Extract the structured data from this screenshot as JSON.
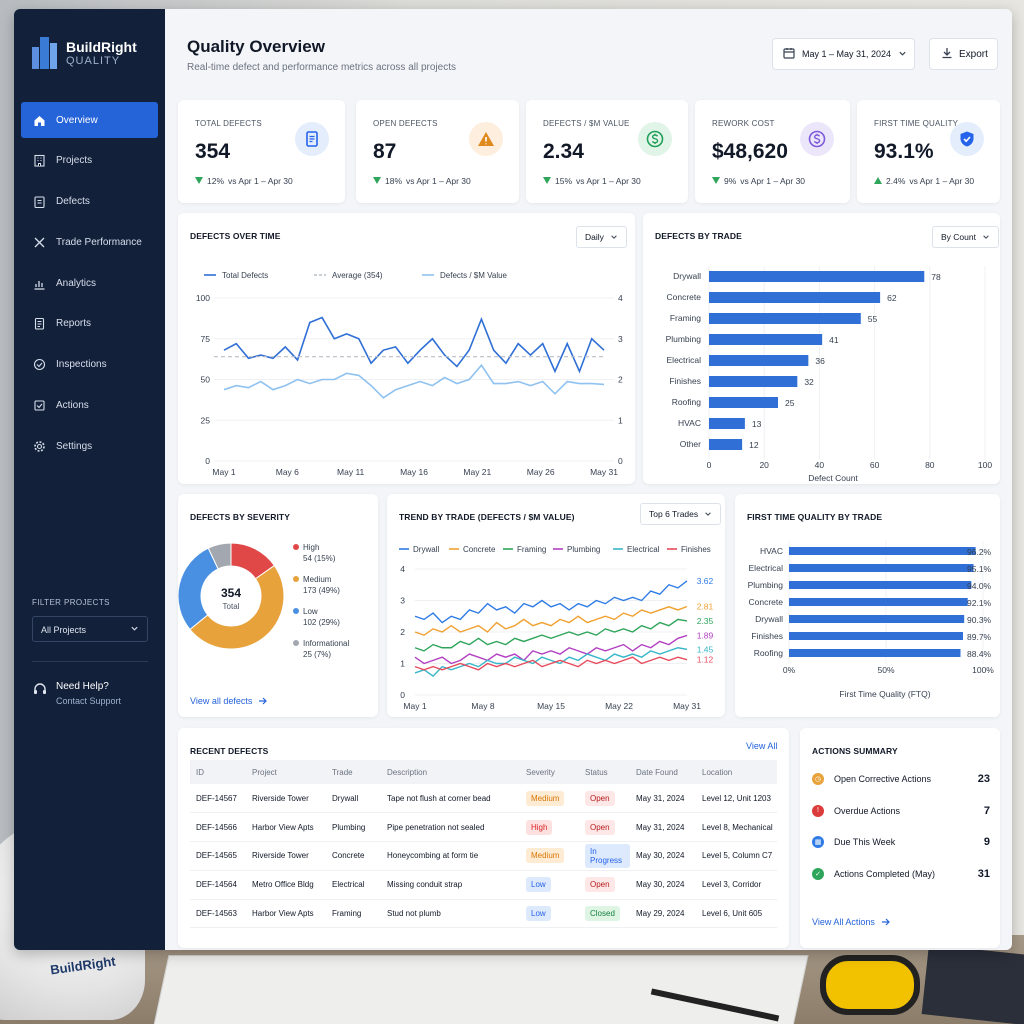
{
  "app": {
    "name": "BuildRight",
    "sub": "QUALITY"
  },
  "sidebar": {
    "items": [
      {
        "label": "Overview",
        "icon": "home-icon",
        "active": true
      },
      {
        "label": "Projects",
        "icon": "building-icon"
      },
      {
        "label": "Defects",
        "icon": "clipboard-icon"
      },
      {
        "label": "Trade Performance",
        "icon": "tools-icon"
      },
      {
        "label": "Analytics",
        "icon": "chart-icon"
      },
      {
        "label": "Reports",
        "icon": "report-icon"
      },
      {
        "label": "Inspections",
        "icon": "check-circle-icon"
      },
      {
        "label": "Actions",
        "icon": "checklist-icon"
      },
      {
        "label": "Settings",
        "icon": "gear-icon"
      }
    ],
    "filter_label": "FILTER PROJECTS",
    "filter_value": "All Projects",
    "help_title": "Need Help?",
    "help_link": "Contact Support"
  },
  "header": {
    "title": "Quality Overview",
    "subtitle": "Real-time defect and performance metrics across all projects",
    "date_range": "May 1 – May 31, 2024",
    "export_label": "Export"
  },
  "kpis": [
    {
      "label": "TOTAL DEFECTS",
      "value": "354",
      "change": "12%",
      "direction": "down",
      "compare": "vs Apr 1 – Apr 30",
      "icon": "document-icon",
      "color": "#2563eb",
      "bg": "#e3edfc"
    },
    {
      "label": "OPEN DEFECTS",
      "value": "87",
      "change": "18%",
      "direction": "down",
      "compare": "vs Apr 1 – Apr 30",
      "icon": "warning-icon",
      "color": "#e08a1e",
      "bg": "#fdeedd"
    },
    {
      "label": "DEFECTS / $M VALUE",
      "value": "2.34",
      "change": "15%",
      "direction": "down",
      "compare": "vs Apr 1 – Apr 30",
      "icon": "dollar-icon",
      "color": "#22a05a",
      "bg": "#e1f4e8"
    },
    {
      "label": "REWORK COST",
      "value": "$48,620",
      "change": "9%",
      "direction": "down",
      "compare": "vs Apr 1 – Apr 30",
      "icon": "dollar-icon",
      "color": "#7c5ad9",
      "bg": "#ece6fb"
    },
    {
      "label": "FIRST TIME QUALITY",
      "value": "93.1%",
      "change": "2.4%",
      "direction": "up",
      "compare": "vs Apr 1 – Apr 30",
      "icon": "shield-check-icon",
      "color": "#2563eb",
      "bg": "#e3edfc"
    }
  ],
  "over_time": {
    "title": "DEFECTS OVER TIME",
    "dropdown": "Daily",
    "legend": [
      "Total Defects",
      "Average (354)",
      "Defects / $M Value"
    ]
  },
  "by_trade": {
    "title": "DEFECTS BY TRADE",
    "dropdown": "By Count"
  },
  "severity": {
    "title": "DEFECTS BY SEVERITY",
    "center_value": "354",
    "center_label": "Total",
    "items": [
      {
        "label": "High",
        "detail": "54 (15%)",
        "color": "#e04848"
      },
      {
        "label": "Medium",
        "detail": "173 (49%)",
        "color": "#e8a23c"
      },
      {
        "label": "Low",
        "detail": "102 (29%)",
        "color": "#4a90e2"
      },
      {
        "label": "Informational",
        "detail": "25 (7%)",
        "color": "#a3a8b0"
      }
    ],
    "link": "View all defects"
  },
  "trend": {
    "title": "TREND BY TRADE (DEFECTS / $M VALUE)",
    "dropdown": "Top 6 Trades"
  },
  "ftq": {
    "title": "FIRST TIME QUALITY BY TRADE"
  },
  "recent": {
    "title": "RECENT DEFECTS",
    "link": "View All",
    "columns": [
      "ID",
      "Project",
      "Trade",
      "Description",
      "Severity",
      "Status",
      "Date Found",
      "Location"
    ],
    "rows": [
      {
        "id": "DEF-14567",
        "project": "Riverside Tower",
        "trade": "Drywall",
        "desc": "Tape not flush at corner bead",
        "severity": "Medium",
        "status": "Open",
        "date": "May 31, 2024",
        "location": "Level 12, Unit 1203"
      },
      {
        "id": "DEF-14566",
        "project": "Harbor View Apts",
        "trade": "Plumbing",
        "desc": "Pipe penetration not sealed",
        "severity": "High",
        "status": "Open",
        "date": "May 31, 2024",
        "location": "Level 8, Mechanical"
      },
      {
        "id": "DEF-14565",
        "project": "Riverside Tower",
        "trade": "Concrete",
        "desc": "Honeycombing at form tie",
        "severity": "Medium",
        "status": "In Progress",
        "date": "May 30, 2024",
        "location": "Level 5, Column C7"
      },
      {
        "id": "DEF-14564",
        "project": "Metro Office Bldg",
        "trade": "Electrical",
        "desc": "Missing conduit strap",
        "severity": "Low",
        "status": "Open",
        "date": "May 30, 2024",
        "location": "Level 3, Corridor"
      },
      {
        "id": "DEF-14563",
        "project": "Harbor View Apts",
        "trade": "Framing",
        "desc": "Stud not plumb",
        "severity": "Low",
        "status": "Closed",
        "date": "May 29, 2024",
        "location": "Level 6, Unit 605"
      }
    ]
  },
  "actions": {
    "title": "ACTIONS SUMMARY",
    "items": [
      {
        "label": "Open Corrective Actions",
        "count": "23",
        "color": "#e8a23c"
      },
      {
        "label": "Overdue Actions",
        "count": "7",
        "color": "#dc3b3b"
      },
      {
        "label": "Due This Week",
        "count": "9",
        "color": "#2f7be5"
      },
      {
        "label": "Actions Completed (May)",
        "count": "31",
        "color": "#2ea55a"
      }
    ],
    "link": "View All Actions"
  },
  "branding": {
    "helmet_text": "BuildRight"
  },
  "chart_data": [
    {
      "type": "line",
      "title": "DEFECTS OVER TIME",
      "x_ticks": [
        "May 1",
        "May 6",
        "May 11",
        "May 16",
        "May 21",
        "May 26",
        "May 31"
      ],
      "ylim": [
        0,
        100
      ],
      "y2lim": [
        0,
        4
      ],
      "y_ticks": [
        "0",
        "25",
        "50",
        "75",
        "100"
      ],
      "y2_ticks": [
        "0",
        "1",
        "2",
        "3",
        "4"
      ],
      "series": [
        {
          "name": "Total Defects",
          "color": "#2f6fd6",
          "axis": "left",
          "values": [
            68,
            72,
            63,
            65,
            63,
            70,
            62,
            85,
            88,
            75,
            78,
            75,
            60,
            68,
            70,
            60,
            68,
            75,
            65,
            58,
            68,
            87,
            68,
            60,
            72,
            65,
            72,
            55,
            72,
            55,
            75,
            68
          ]
        },
        {
          "name": "Average (354)",
          "color": "#b9bec7",
          "axis": "left",
          "dashed": true,
          "values": [
            64,
            64
          ]
        },
        {
          "name": "Defects / $M Value",
          "color": "#8fc2f0",
          "axis": "right",
          "values": [
            1.75,
            1.85,
            1.8,
            1.95,
            1.75,
            1.85,
            2.0,
            1.9,
            2.0,
            2.0,
            2.15,
            2.1,
            1.85,
            1.55,
            1.75,
            1.85,
            1.95,
            1.85,
            2.05,
            1.9,
            2.0,
            2.35,
            1.9,
            1.9,
            1.95,
            1.85,
            1.95,
            1.65,
            1.95,
            1.9,
            1.9,
            1.88
          ]
        }
      ]
    },
    {
      "type": "bar",
      "orientation": "horizontal",
      "title": "DEFECTS BY TRADE",
      "categories": [
        "Drywall",
        "Concrete",
        "Framing",
        "Plumbing",
        "Electrical",
        "Finishes",
        "Roofing",
        "HVAC",
        "Other"
      ],
      "values": [
        78,
        62,
        55,
        41,
        36,
        32,
        25,
        13,
        12
      ],
      "xlim": [
        0,
        100
      ],
      "x_ticks": [
        "0",
        "20",
        "40",
        "60",
        "80",
        "100"
      ],
      "xlabel": "Defect Count",
      "color": "#2f6fd6"
    },
    {
      "type": "pie",
      "title": "DEFECTS BY SEVERITY",
      "categories": [
        "High",
        "Medium",
        "Low",
        "Informational"
      ],
      "values": [
        54,
        173,
        102,
        25
      ]
    },
    {
      "type": "line",
      "title": "TREND BY TRADE (DEFECTS / $M VALUE)",
      "x_ticks": [
        "May 1",
        "May 8",
        "May 15",
        "May 22",
        "May 31"
      ],
      "ylim": [
        0,
        4
      ],
      "y_ticks": [
        "0",
        "1",
        "2",
        "3",
        "4"
      ],
      "series": [
        {
          "name": "Drywall",
          "color": "#2f7be5",
          "end_label": "3.62",
          "values": [
            2.5,
            2.4,
            2.6,
            2.3,
            2.5,
            2.4,
            2.7,
            2.6,
            2.9,
            2.7,
            2.8,
            2.6,
            2.9,
            2.8,
            3.0,
            2.8,
            2.9,
            2.7,
            2.9,
            2.8,
            3.0,
            2.9,
            3.1,
            3.0,
            3.1,
            3.0,
            3.3,
            3.2,
            3.5,
            3.4,
            3.62
          ]
        },
        {
          "name": "Concrete",
          "color": "#f0a030",
          "end_label": "2.81",
          "values": [
            2.0,
            1.9,
            2.1,
            2.0,
            2.2,
            2.0,
            2.1,
            2.2,
            2.0,
            2.3,
            2.1,
            2.2,
            2.4,
            2.2,
            2.3,
            2.2,
            2.4,
            2.3,
            2.5,
            2.3,
            2.4,
            2.5,
            2.4,
            2.6,
            2.5,
            2.7,
            2.6,
            2.7,
            2.8,
            2.7,
            2.81
          ]
        },
        {
          "name": "Framing",
          "color": "#2ea55a",
          "end_label": "2.35",
          "values": [
            1.5,
            1.4,
            1.6,
            1.5,
            1.5,
            1.7,
            1.6,
            1.8,
            1.6,
            1.7,
            1.6,
            1.8,
            1.7,
            1.8,
            1.9,
            1.8,
            1.9,
            2.0,
            1.9,
            2.0,
            1.9,
            2.1,
            2.0,
            2.1,
            2.0,
            2.2,
            2.1,
            2.3,
            2.2,
            2.4,
            2.35
          ]
        },
        {
          "name": "Plumbing",
          "color": "#b23fc2",
          "end_label": "1.89",
          "values": [
            1.2,
            1.0,
            1.1,
            1.2,
            1.0,
            1.1,
            1.3,
            1.2,
            1.1,
            1.3,
            1.2,
            1.3,
            1.1,
            1.4,
            1.3,
            1.4,
            1.3,
            1.5,
            1.4,
            1.3,
            1.5,
            1.4,
            1.5,
            1.6,
            1.4,
            1.6,
            1.5,
            1.7,
            1.6,
            1.8,
            1.89
          ]
        },
        {
          "name": "Electrical",
          "color": "#36b6c8",
          "end_label": "1.45",
          "values": [
            0.7,
            0.8,
            0.6,
            0.9,
            0.8,
            0.9,
            1.0,
            0.9,
            1.1,
            1.0,
            1.0,
            1.2,
            1.1,
            1.0,
            1.2,
            1.1,
            1.0,
            1.2,
            1.1,
            1.3,
            1.2,
            1.1,
            1.3,
            1.2,
            1.3,
            1.2,
            1.4,
            1.3,
            1.4,
            1.5,
            1.45
          ]
        },
        {
          "name": "Finishes",
          "color": "#e64a5a",
          "end_label": "1.12",
          "values": [
            0.9,
            0.8,
            0.9,
            0.8,
            0.9,
            1.0,
            0.9,
            0.8,
            1.0,
            0.9,
            1.0,
            0.9,
            1.0,
            1.1,
            0.9,
            1.0,
            1.1,
            1.0,
            0.9,
            1.1,
            1.0,
            1.1,
            1.0,
            1.1,
            1.2,
            1.0,
            1.1,
            1.2,
            1.1,
            1.2,
            1.12
          ]
        }
      ]
    },
    {
      "type": "bar",
      "orientation": "horizontal",
      "title": "FIRST TIME QUALITY BY TRADE",
      "categories": [
        "HVAC",
        "Electrical",
        "Plumbing",
        "Concrete",
        "Drywall",
        "Finishes",
        "Roofing"
      ],
      "values": [
        96.2,
        95.1,
        94.0,
        92.1,
        90.3,
        89.7,
        88.4
      ],
      "labels": [
        "96.2%",
        "95.1%",
        "94.0%",
        "92.1%",
        "90.3%",
        "89.7%",
        "88.4%"
      ],
      "xlim": [
        0,
        100
      ],
      "x_ticks": [
        "0%",
        "50%",
        "100%"
      ],
      "xlabel": "First Time Quality (FTQ)",
      "color": "#2f6fd6"
    }
  ]
}
